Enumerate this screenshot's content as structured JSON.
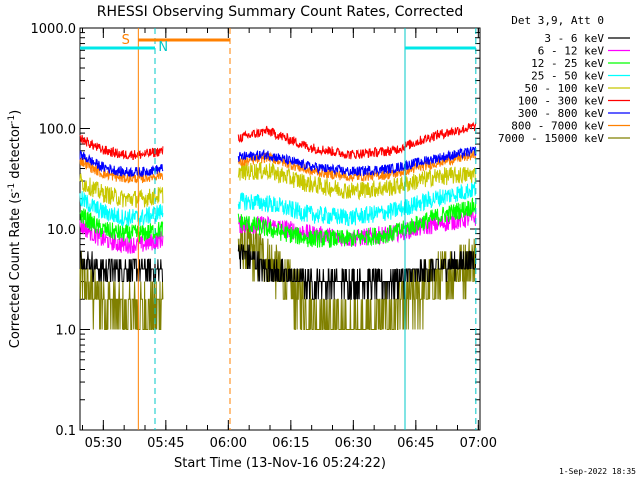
{
  "chart_data": {
    "type": "line",
    "title": "RHESSI Observing Summary Count Rates, Corrected",
    "xlabel": "Start Time (13-Nov-16 05:24:22)",
    "ylabel": "Corrected Count Rate (s",
    "ylabel_sup1": "-1",
    "ylabel_mid": " detector",
    "ylabel_sup2": "-1",
    "ylabel_end": ")",
    "y_scale": "log",
    "ylim": [
      0.1,
      1000
    ],
    "xlim_minutes": [
      0,
      96
    ],
    "y_ticks": [
      {
        "value": 1000,
        "label": "1000.0"
      },
      {
        "value": 100,
        "label": "100.0"
      },
      {
        "value": 10,
        "label": "10.0"
      },
      {
        "value": 1,
        "label": "1.0"
      },
      {
        "value": 0.1,
        "label": "0.1"
      }
    ],
    "x_ticks": [
      {
        "minute": 5.6,
        "label": "05:30"
      },
      {
        "minute": 20.6,
        "label": "05:45"
      },
      {
        "minute": 35.6,
        "label": "06:00"
      },
      {
        "minute": 50.6,
        "label": "06:15"
      },
      {
        "minute": 65.6,
        "label": "06:30"
      },
      {
        "minute": 80.6,
        "label": "06:45"
      },
      {
        "minute": 95.6,
        "label": "07:00"
      }
    ],
    "legend_title": "Det 3,9, Att 0",
    "legend_position": "right",
    "gaps_minutes": [
      [
        20,
        38
      ]
    ],
    "series": [
      {
        "name": "3 - 6 keV",
        "color": "#000000",
        "x": [
          0,
          5,
          10,
          15,
          20,
          38,
          45,
          55,
          65,
          75,
          85,
          95
        ],
        "y": [
          5,
          4,
          4,
          4,
          4,
          6,
          4,
          3,
          3,
          3,
          4,
          5
        ]
      },
      {
        "name": "6 - 12 keV",
        "color": "#ff00ff",
        "x": [
          0,
          5,
          10,
          15,
          20,
          38,
          45,
          55,
          65,
          75,
          85,
          95
        ],
        "y": [
          11,
          8,
          7,
          7,
          8,
          11,
          11,
          9,
          8,
          9,
          11,
          13
        ]
      },
      {
        "name": "12 - 25 keV",
        "color": "#00ff00",
        "x": [
          0,
          5,
          10,
          15,
          20,
          38,
          45,
          55,
          65,
          75,
          85,
          95
        ],
        "y": [
          14,
          10,
          9,
          9,
          10,
          12,
          10,
          8,
          8,
          9,
          13,
          17
        ]
      },
      {
        "name": "25 - 50 keV",
        "color": "#00ffff",
        "x": [
          0,
          5,
          10,
          15,
          20,
          38,
          45,
          55,
          65,
          75,
          85,
          95
        ],
        "y": [
          20,
          15,
          13,
          13,
          15,
          19,
          18,
          14,
          13,
          15,
          20,
          25
        ]
      },
      {
        "name": "50 - 100 keV",
        "color": "#c8c800",
        "x": [
          0,
          5,
          10,
          15,
          20,
          38,
          45,
          55,
          65,
          75,
          85,
          95
        ],
        "y": [
          30,
          23,
          20,
          20,
          22,
          37,
          38,
          28,
          24,
          26,
          33,
          35
        ]
      },
      {
        "name": "100 - 300 keV",
        "color": "#ff0000",
        "x": [
          0,
          5,
          10,
          15,
          20,
          38,
          45,
          55,
          65,
          75,
          85,
          95
        ],
        "y": [
          80,
          62,
          55,
          55,
          60,
          80,
          95,
          65,
          55,
          60,
          85,
          105
        ]
      },
      {
        "name": "300 - 800 keV",
        "color": "#0000ff",
        "x": [
          0,
          5,
          10,
          15,
          20,
          38,
          45,
          55,
          65,
          75,
          85,
          95
        ],
        "y": [
          55,
          42,
          37,
          37,
          40,
          52,
          55,
          42,
          37,
          40,
          50,
          60
        ]
      },
      {
        "name": "800 - 7000 keV",
        "color": "#ff8000",
        "x": [
          0,
          5,
          10,
          15,
          20,
          38,
          45,
          55,
          65,
          75,
          85,
          95
        ],
        "y": [
          48,
          36,
          32,
          32,
          35,
          45,
          52,
          38,
          33,
          35,
          45,
          55
        ]
      },
      {
        "name": "7000 - 15000 keV",
        "color": "#808000",
        "x": [
          0,
          5,
          10,
          15,
          20,
          38,
          45,
          55,
          65,
          75,
          85,
          95
        ],
        "y": [
          3,
          2,
          1.5,
          1.5,
          2,
          7,
          5,
          1.5,
          1.0,
          1.5,
          3,
          5
        ]
      }
    ],
    "annotations": [
      {
        "label": "S",
        "color": "#ff8000"
      },
      {
        "label": "N",
        "color": "#00c8c8"
      }
    ],
    "vertical_lines": [
      {
        "minute": 14,
        "color": "#ff8000",
        "style": "solid"
      },
      {
        "minute": 18,
        "color": "#00c8c8",
        "style": "dashed"
      },
      {
        "minute": 36,
        "color": "#ff8000",
        "style": "dashed"
      },
      {
        "minute": 78,
        "color": "#00c8c8",
        "style": "solid"
      },
      {
        "minute": 95,
        "color": "#00c8c8",
        "style": "dashed"
      }
    ],
    "bars": [
      {
        "color": "#00e8e8",
        "from_minute": 0,
        "to_minute": 18
      },
      {
        "color": "#ff8000",
        "from_minute": 14,
        "to_minute": 36
      },
      {
        "color": "#00e8e8",
        "from_minute": 78,
        "to_minute": 95
      }
    ],
    "footer": "1-Sep-2022 18:35"
  }
}
